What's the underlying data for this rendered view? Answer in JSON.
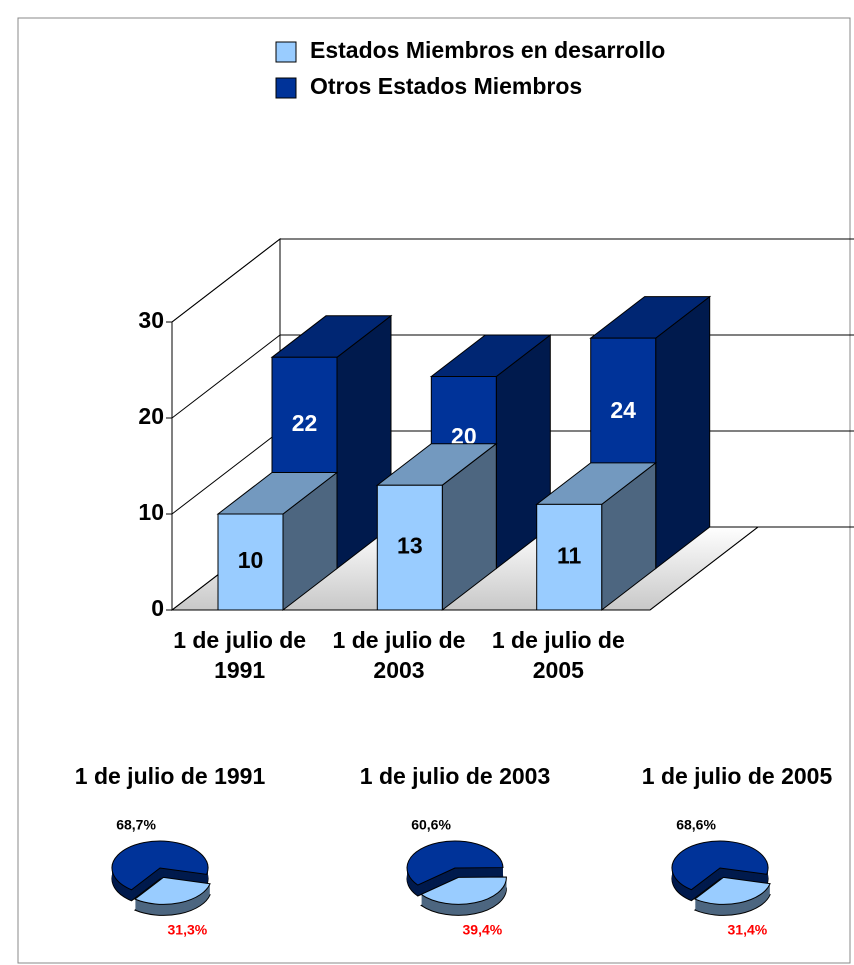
{
  "chart_data": [
    {
      "type": "bar3d",
      "categories": [
        "1 de julio de 1991",
        "1 de julio de 2003",
        "1 de julio de 2005"
      ],
      "series": [
        {
          "name": "Estados Miembros en desarrollo",
          "color": "#99ccff",
          "values": [
            10,
            13,
            11
          ]
        },
        {
          "name": "Otros Estados Miembros",
          "color": "#003399",
          "values": [
            22,
            20,
            24
          ]
        }
      ],
      "ylim": [
        0,
        30
      ],
      "yticks": [
        0,
        10,
        20,
        30
      ],
      "grid": true,
      "legend": "top"
    },
    {
      "type": "pie",
      "title": "1 de julio de 1991",
      "values": [
        68.7,
        31.3
      ],
      "value_labels": [
        "68,7%",
        "31,3%"
      ],
      "colors": [
        "#003399",
        "#99ccff"
      ],
      "label_colors": [
        "#000000",
        "#ff0000"
      ]
    },
    {
      "type": "pie",
      "title": "1 de julio de 2003",
      "values": [
        60.6,
        39.4
      ],
      "value_labels": [
        "60,6%",
        "39,4%"
      ],
      "colors": [
        "#003399",
        "#99ccff"
      ],
      "label_colors": [
        "#000000",
        "#ff0000"
      ]
    },
    {
      "type": "pie",
      "title": "1 de julio de 2005",
      "values": [
        68.6,
        31.4
      ],
      "value_labels": [
        "68,6%",
        "31,4%"
      ],
      "colors": [
        "#003399",
        "#99ccff"
      ],
      "label_colors": [
        "#000000",
        "#ff0000"
      ]
    }
  ]
}
